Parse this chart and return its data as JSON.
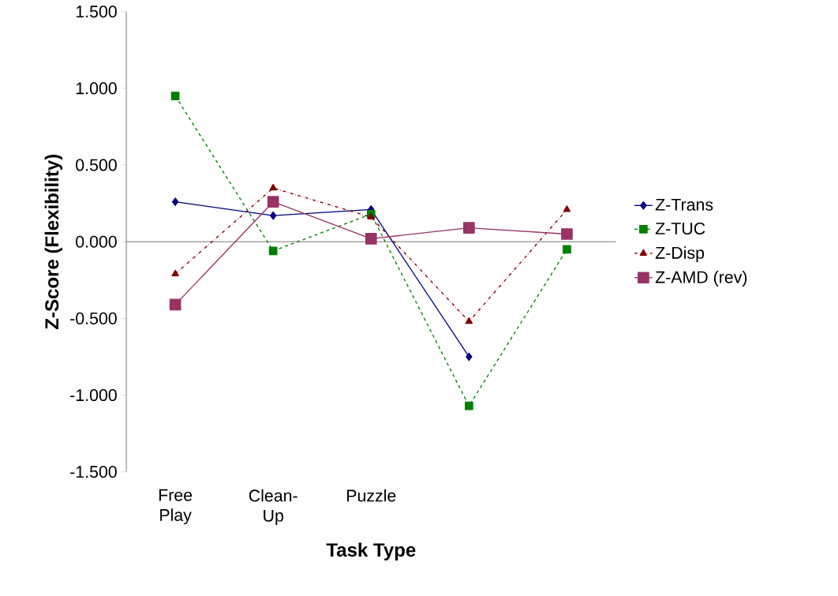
{
  "chart_data": {
    "type": "line",
    "xlabel": "Task Type",
    "ylabel": "Z-Score (Flexibility)",
    "categories": [
      "Free Play",
      "Clean-Up",
      "Puzzle",
      null,
      null
    ],
    "ylim": [
      -1.5,
      1.5
    ],
    "yticks": [
      {
        "value": -1.5,
        "label": "-1.500"
      },
      {
        "value": -1.0,
        "label": "-1.000"
      },
      {
        "value": -0.5,
        "label": "-0.500"
      },
      {
        "value": 0,
        "label": "0.000"
      },
      {
        "value": 0.5,
        "label": "0.500"
      },
      {
        "value": 1.0,
        "label": "1.000"
      },
      {
        "value": 1.5,
        "label": "1.500"
      }
    ],
    "legend": "right",
    "series": [
      {
        "name": "Z-Trans",
        "color": "#000080",
        "marker": "diamond",
        "line_style": "solid",
        "values": [
          0.26,
          0.17,
          0.21,
          -0.75,
          null
        ]
      },
      {
        "name": "Z-TUC",
        "color": "#008000",
        "marker": "square",
        "line_style": "dashed",
        "values": [
          0.95,
          -0.06,
          0.18,
          -1.07,
          -0.05
        ]
      },
      {
        "name": "Z-Disp",
        "color": "#800000",
        "marker": "triangle",
        "line_style": "dashdot",
        "values": [
          -0.21,
          0.35,
          0.16,
          -0.52,
          0.21
        ]
      },
      {
        "name": "Z-AMD (rev)",
        "color": "#993366",
        "marker": "square",
        "line_style": "solid",
        "values": [
          -0.41,
          0.26,
          0.02,
          0.09,
          0.05
        ]
      }
    ]
  }
}
